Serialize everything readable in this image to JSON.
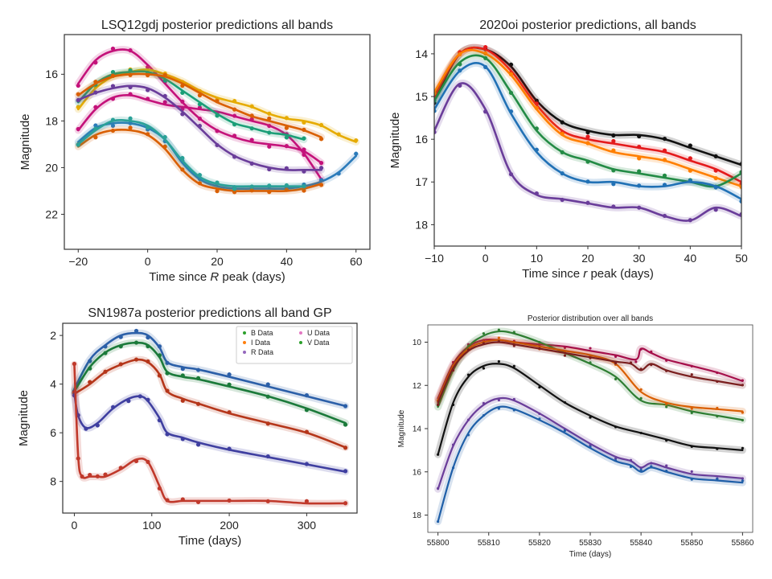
{
  "chart_data": [
    {
      "type": "line",
      "title": "LSQ12gdj posterior predictions all bands",
      "xlabel": "Time since R peak (days)",
      "xlabel_parts": [
        "Time since ",
        "R",
        " peak (days)"
      ],
      "ylabel": "Magnitude",
      "xlim": [
        -24,
        64
      ],
      "ylim": [
        23.5,
        14.3
      ],
      "xticks": [
        -20,
        0,
        20,
        40,
        60
      ],
      "yticks": [
        16,
        18,
        20,
        22
      ],
      "y_inverted": true,
      "legend": null,
      "series": [
        {
          "color": "#c4127a",
          "x": [
            -20,
            -15,
            -10,
            -5,
            0,
            5,
            10,
            15,
            20,
            25,
            30,
            35,
            40,
            45,
            50
          ],
          "y": [
            16.4,
            15.4,
            15.0,
            15.0,
            15.6,
            16.4,
            17.2,
            17.9,
            18.4,
            18.7,
            18.9,
            19.0,
            19.1,
            19.3,
            19.8
          ]
        },
        {
          "color": "#c4127a",
          "x": [
            -20,
            -15,
            -10,
            -5,
            0,
            5,
            10,
            15,
            20,
            25,
            30,
            35,
            40,
            45,
            50
          ],
          "y": [
            18.4,
            17.5,
            17.0,
            16.9,
            17.1,
            17.3,
            17.4,
            17.5,
            17.6,
            17.8,
            18.0,
            18.2,
            18.6,
            19.4,
            20.5
          ]
        },
        {
          "color": "#e6ab02",
          "x": [
            -20,
            -15,
            -10,
            -5,
            0,
            5,
            10,
            15,
            20,
            25,
            30,
            35,
            40,
            45,
            50,
            55,
            60
          ],
          "y": [
            17.5,
            16.6,
            16.1,
            15.9,
            15.8,
            16.0,
            16.3,
            16.7,
            17.0,
            17.2,
            17.4,
            17.7,
            17.9,
            18.0,
            18.2,
            18.6,
            18.9
          ]
        },
        {
          "color": "#1b9e77",
          "x": [
            -20,
            -15,
            -10,
            -5,
            0,
            5,
            10,
            15,
            20,
            25,
            30,
            35,
            40,
            45
          ],
          "y": [
            17.2,
            16.4,
            16.0,
            15.9,
            15.9,
            16.2,
            16.7,
            17.2,
            17.7,
            18.1,
            18.3,
            18.5,
            18.6,
            18.8
          ]
        },
        {
          "color": "#d95f02",
          "x": [
            -20,
            -15,
            -10,
            -5,
            0,
            5,
            10,
            15,
            20,
            25,
            30,
            35,
            40,
            45,
            50
          ],
          "y": [
            16.9,
            16.4,
            16.1,
            16.0,
            16.0,
            16.1,
            16.4,
            16.8,
            17.2,
            17.5,
            17.8,
            18.0,
            18.2,
            18.4,
            18.7
          ]
        },
        {
          "color": "#6a3d9a",
          "x": [
            -20,
            -15,
            -10,
            -5,
            0,
            5,
            10,
            15,
            20,
            25,
            30,
            35,
            40,
            45,
            50
          ],
          "y": [
            17.1,
            16.8,
            16.6,
            16.5,
            16.6,
            17.0,
            17.6,
            18.3,
            19.0,
            19.5,
            19.8,
            20.0,
            20.1,
            20.1,
            20.1
          ]
        },
        {
          "color": "#2b7bba",
          "x": [
            -20,
            -15,
            -10,
            -5,
            0,
            5,
            10,
            15,
            20,
            25,
            30,
            35,
            40,
            45,
            50,
            55,
            60
          ],
          "y": [
            18.9,
            18.3,
            18.1,
            18.1,
            18.3,
            18.8,
            19.8,
            20.5,
            20.8,
            20.9,
            20.9,
            20.9,
            20.9,
            20.8,
            20.6,
            20.2,
            19.5
          ]
        },
        {
          "color": "#d95f02",
          "x": [
            -20,
            -15,
            -10,
            -5,
            0,
            5,
            10,
            15,
            20,
            25,
            30,
            35,
            40,
            45,
            50
          ],
          "y": [
            19.1,
            18.6,
            18.4,
            18.4,
            18.6,
            19.2,
            20.1,
            20.7,
            20.9,
            21.0,
            21.0,
            21.0,
            21.0,
            20.9,
            20.7
          ]
        },
        {
          "color": "#2aa198",
          "x": [
            -20,
            -15,
            -10,
            -5,
            0,
            5,
            10,
            15,
            20,
            25,
            30,
            35,
            40,
            45
          ],
          "y": [
            19.0,
            18.4,
            18.0,
            18.0,
            18.2,
            18.8,
            19.7,
            20.4,
            20.7,
            20.8,
            20.8,
            20.8,
            20.8,
            20.8
          ]
        }
      ]
    },
    {
      "type": "line",
      "title": "2020oi posterior predictions, all bands",
      "xlabel": "Time since r peak (days)",
      "xlabel_parts": [
        "Time since ",
        "r",
        " peak (days)"
      ],
      "ylabel": "Magnitude",
      "xlim": [
        -10,
        50
      ],
      "ylim": [
        18.5,
        13.55
      ],
      "xticks": [
        -10,
        0,
        10,
        20,
        30,
        40,
        50
      ],
      "yticks": [
        14,
        15,
        16,
        17,
        18
      ],
      "y_inverted": true,
      "legend": null,
      "series": [
        {
          "color": "#111111",
          "x": [
            -10,
            -5,
            0,
            5,
            10,
            15,
            20,
            25,
            30,
            35,
            40,
            45,
            50
          ],
          "y": [
            15.1,
            14.0,
            13.9,
            14.3,
            15.1,
            15.6,
            15.8,
            15.9,
            15.9,
            16.0,
            16.2,
            16.4,
            16.6
          ]
        },
        {
          "color": "#e41a1c",
          "x": [
            -10,
            -5,
            0,
            5,
            10,
            15,
            20,
            25,
            30,
            35,
            40,
            45,
            50
          ],
          "y": [
            15.0,
            14.0,
            13.9,
            14.4,
            15.2,
            15.8,
            16.0,
            16.1,
            16.2,
            16.3,
            16.5,
            16.7,
            17.0
          ]
        },
        {
          "color": "#ff7f00",
          "x": [
            -10,
            -5,
            0,
            5,
            10,
            15,
            20,
            25,
            30,
            35,
            40,
            45,
            50
          ],
          "y": [
            14.9,
            14.0,
            14.0,
            14.5,
            15.3,
            15.9,
            16.1,
            16.3,
            16.4,
            16.5,
            16.7,
            16.9,
            17.1
          ]
        },
        {
          "color": "#238b45",
          "x": [
            -10,
            -5,
            0,
            5,
            10,
            15,
            20,
            25,
            30,
            35,
            40,
            45,
            50
          ],
          "y": [
            15.1,
            14.2,
            14.1,
            14.9,
            15.8,
            16.3,
            16.5,
            16.7,
            16.8,
            16.9,
            17.0,
            17.1,
            16.8
          ]
        },
        {
          "color": "#2171b5",
          "x": [
            -10,
            -5,
            0,
            5,
            10,
            15,
            20,
            25,
            30,
            35,
            40,
            45,
            50
          ],
          "y": [
            15.3,
            14.4,
            14.3,
            15.4,
            16.3,
            16.8,
            17.0,
            17.0,
            17.1,
            17.1,
            17.0,
            17.1,
            17.4
          ]
        },
        {
          "color": "#6a3d9a",
          "x": [
            -10,
            -5,
            0,
            5,
            10,
            15,
            20,
            25,
            30,
            35,
            40,
            45,
            50
          ],
          "y": [
            15.8,
            14.7,
            15.3,
            16.8,
            17.3,
            17.4,
            17.5,
            17.6,
            17.6,
            17.8,
            17.9,
            17.6,
            17.8
          ]
        }
      ]
    },
    {
      "type": "line",
      "title": "SN1987a posterior predictions all band GP",
      "xlabel": "Time (days)",
      "ylabel": "Magnitude",
      "xlim": [
        -15,
        365
      ],
      "ylim": [
        9.3,
        1.5
      ],
      "xticks": [
        0,
        100,
        200,
        300
      ],
      "yticks": [
        2,
        4,
        6,
        8
      ],
      "y_inverted": true,
      "legend": {
        "placement": "upper right",
        "columns": 2,
        "entries": [
          {
            "label": "B Data",
            "color": "#2ca02c"
          },
          {
            "label": "U Data",
            "color": "#e377c2"
          },
          {
            "label": "I Data",
            "color": "#ff7f0e"
          },
          {
            "label": "V Data",
            "color": "#2ca02c"
          },
          {
            "label": "R Data",
            "color": "#9467bd"
          }
        ]
      },
      "series": [
        {
          "color": "#2b5fa8",
          "x": [
            0,
            20,
            40,
            60,
            80,
            95,
            110,
            120,
            140,
            160,
            200,
            250,
            300,
            350
          ],
          "y": [
            4.2,
            3.0,
            2.4,
            2.0,
            1.9,
            2.0,
            2.5,
            3.1,
            3.3,
            3.4,
            3.7,
            4.1,
            4.5,
            4.9
          ]
        },
        {
          "color": "#1b7a3a",
          "x": [
            0,
            20,
            40,
            60,
            80,
            95,
            110,
            120,
            140,
            160,
            200,
            250,
            300,
            350
          ],
          "y": [
            4.3,
            3.3,
            2.7,
            2.4,
            2.3,
            2.4,
            2.9,
            3.5,
            3.7,
            3.8,
            4.1,
            4.5,
            5.0,
            5.6
          ]
        },
        {
          "color": "#b5361a",
          "x": [
            0,
            20,
            40,
            60,
            80,
            95,
            110,
            120,
            140,
            160,
            200,
            250,
            300,
            350
          ],
          "y": [
            4.4,
            4.0,
            3.5,
            3.2,
            3.0,
            3.1,
            3.6,
            4.3,
            4.6,
            4.8,
            5.2,
            5.6,
            6.0,
            6.6
          ]
        },
        {
          "color": "#3f3fa0",
          "x": [
            0,
            5,
            15,
            30,
            50,
            70,
            85,
            95,
            110,
            120,
            140,
            160,
            200,
            250,
            300,
            350
          ],
          "y": [
            4.4,
            5.3,
            5.8,
            5.6,
            5.0,
            4.6,
            4.5,
            4.7,
            5.4,
            6.0,
            6.2,
            6.4,
            6.7,
            7.0,
            7.3,
            7.6
          ]
        },
        {
          "color": "#c0392b",
          "x": [
            0,
            5,
            10,
            20,
            30,
            40,
            60,
            80,
            95,
            110,
            120,
            140,
            160,
            200,
            250,
            300,
            350
          ],
          "y": [
            3.2,
            7.0,
            7.8,
            7.8,
            7.8,
            7.8,
            7.5,
            7.1,
            7.2,
            8.2,
            8.8,
            8.8,
            8.8,
            8.8,
            8.8,
            8.9,
            8.9
          ]
        }
      ]
    },
    {
      "type": "line",
      "title": "Posterior distribution over all bands",
      "xlabel": "Time (days)",
      "ylabel": "Magnitude",
      "xlim": [
        55798,
        55862
      ],
      "ylim": [
        18.8,
        9.2
      ],
      "xticks": [
        55800,
        55810,
        55820,
        55830,
        55840,
        55850,
        55860
      ],
      "yticks": [
        10,
        12,
        14,
        16,
        18
      ],
      "y_inverted": true,
      "legend": null,
      "series": [
        {
          "color": "#a50f4a",
          "x": [
            55800,
            55803,
            55806,
            55809,
            55812,
            55815,
            55820,
            55825,
            55830,
            55835,
            55839,
            55840,
            55842,
            55845,
            55850,
            55855,
            55860
          ],
          "y": [
            12.6,
            11.0,
            10.2,
            9.9,
            9.9,
            10.0,
            10.1,
            10.2,
            10.4,
            10.6,
            10.8,
            10.3,
            10.5,
            10.8,
            11.1,
            11.4,
            11.8
          ]
        },
        {
          "color": "#2e7d32",
          "x": [
            55800,
            55803,
            55806,
            55809,
            55812,
            55815,
            55820,
            55825,
            55830,
            55835,
            55840,
            55845,
            55850,
            55855,
            55860
          ],
          "y": [
            13.0,
            11.3,
            10.2,
            9.7,
            9.5,
            9.6,
            10.0,
            10.5,
            11.0,
            11.6,
            12.7,
            12.9,
            13.2,
            13.4,
            13.6
          ]
        },
        {
          "color": "#d95f02",
          "x": [
            55800,
            55803,
            55806,
            55809,
            55812,
            55815,
            55820,
            55825,
            55830,
            55835,
            55840,
            55845,
            55850,
            55855,
            55860
          ],
          "y": [
            12.7,
            11.1,
            10.3,
            10.0,
            9.9,
            10.0,
            10.2,
            10.4,
            10.6,
            11.0,
            12.3,
            12.8,
            13.0,
            13.1,
            13.2
          ]
        },
        {
          "color": "#7a1f1f",
          "x": [
            55800,
            55803,
            55806,
            55809,
            55812,
            55815,
            55820,
            55825,
            55830,
            55835,
            55838,
            55840,
            55842,
            55845,
            55850,
            55855,
            55860
          ],
          "y": [
            12.8,
            11.2,
            10.4,
            10.1,
            10.0,
            10.1,
            10.3,
            10.5,
            10.7,
            10.9,
            11.0,
            11.3,
            11.0,
            11.3,
            11.6,
            11.8,
            12.0
          ]
        },
        {
          "color": "#111111",
          "x": [
            55800,
            55803,
            55806,
            55809,
            55812,
            55815,
            55820,
            55825,
            55830,
            55835,
            55840,
            55845,
            55850,
            55855,
            55860
          ],
          "y": [
            15.2,
            12.8,
            11.6,
            11.1,
            11.0,
            11.2,
            12.0,
            12.8,
            13.4,
            13.9,
            14.2,
            14.5,
            14.8,
            14.9,
            15.0
          ]
        },
        {
          "color": "#6a3d9a",
          "x": [
            55800,
            55803,
            55806,
            55809,
            55812,
            55815,
            55820,
            55825,
            55830,
            55835,
            55838,
            55840,
            55842,
            55845,
            55850,
            55855,
            55860
          ],
          "y": [
            16.8,
            14.8,
            13.6,
            12.9,
            12.6,
            12.7,
            13.3,
            14.0,
            14.7,
            15.3,
            15.5,
            15.8,
            15.6,
            15.8,
            16.1,
            16.2,
            16.3
          ]
        },
        {
          "color": "#1f5fa8",
          "x": [
            55800,
            55803,
            55806,
            55809,
            55812,
            55815,
            55820,
            55825,
            55830,
            55835,
            55838,
            55840,
            55842,
            55845,
            55850,
            55855,
            55860
          ],
          "y": [
            18.3,
            15.8,
            14.2,
            13.4,
            13.0,
            13.1,
            13.6,
            14.2,
            14.9,
            15.5,
            15.7,
            16.0,
            15.8,
            16.0,
            16.3,
            16.4,
            16.5
          ]
        }
      ]
    }
  ]
}
